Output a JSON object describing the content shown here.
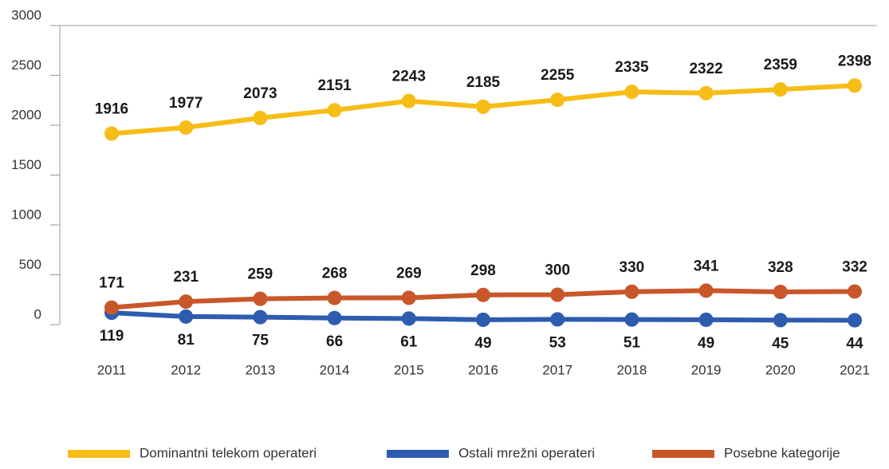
{
  "chart_data": {
    "type": "line",
    "categories": [
      "2011",
      "2012",
      "2013",
      "2014",
      "2015",
      "2016",
      "2017",
      "2018",
      "2019",
      "2020",
      "2021"
    ],
    "series": [
      {
        "name": "Dominantni telekom operateri",
        "color": "#f7bd17",
        "values": [
          1916,
          1977,
          2073,
          2151,
          2243,
          2185,
          2255,
          2335,
          2322,
          2359,
          2398
        ]
      },
      {
        "name": "Ostali mrežni operateri",
        "color": "#2e5caf",
        "values": [
          119,
          81,
          75,
          66,
          61,
          49,
          53,
          51,
          49,
          45,
          44
        ]
      },
      {
        "name": "Posebne kategorije",
        "color": "#c9572a",
        "values": [
          171,
          231,
          259,
          268,
          269,
          298,
          300,
          330,
          341,
          328,
          332
        ]
      }
    ],
    "ylim": [
      0,
      3000
    ],
    "yticks": [
      0,
      500,
      1000,
      1500,
      2000,
      2500,
      3000
    ],
    "grid": false,
    "legend": "bottom"
  }
}
